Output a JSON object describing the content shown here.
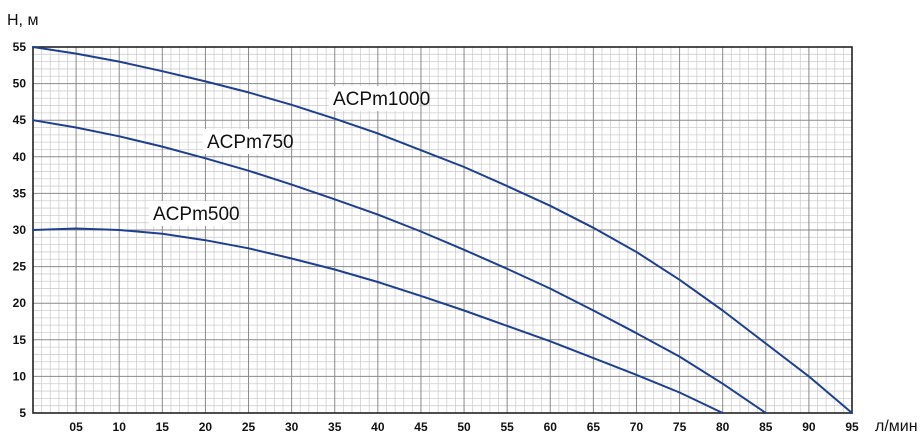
{
  "chart_data": {
    "type": "line",
    "ylabel": "H, м",
    "xlabel": "л/мин",
    "xlim": [
      0,
      95
    ],
    "ylim": [
      5,
      55
    ],
    "x_ticks": [
      "05",
      "10",
      "15",
      "20",
      "25",
      "30",
      "35",
      "40",
      "45",
      "50",
      "55",
      "60",
      "65",
      "70",
      "75",
      "80",
      "85",
      "90",
      "95"
    ],
    "y_ticks": [
      "5",
      "10",
      "15",
      "20",
      "25",
      "30",
      "35",
      "40",
      "45",
      "50",
      "55"
    ],
    "grid": true,
    "line_color": "#1f3f8f",
    "series": [
      {
        "name": "ACPm1000",
        "x": [
          0,
          5,
          10,
          15,
          20,
          25,
          30,
          35,
          40,
          45,
          50,
          55,
          60,
          65,
          70,
          75,
          80,
          85,
          90,
          95
        ],
        "y": [
          55,
          54.1,
          53,
          51.7,
          50.3,
          48.8,
          47.1,
          45.2,
          43.2,
          40.9,
          38.6,
          36,
          33.3,
          30.3,
          27,
          23.2,
          19,
          14.5,
          10,
          5
        ]
      },
      {
        "name": "ACPm750",
        "x": [
          0,
          5,
          10,
          15,
          20,
          25,
          30,
          35,
          40,
          45,
          50,
          55,
          60,
          65,
          70,
          75,
          80,
          85
        ],
        "y": [
          45,
          44,
          42.8,
          41.4,
          39.8,
          38.1,
          36.2,
          34.2,
          32.1,
          29.8,
          27.3,
          24.7,
          22,
          19,
          15.9,
          12.7,
          9,
          5
        ]
      },
      {
        "name": "ACPm500",
        "x": [
          0,
          5,
          10,
          15,
          20,
          25,
          30,
          35,
          40,
          45,
          50,
          55,
          60,
          65,
          70,
          75,
          80
        ],
        "y": [
          30,
          30.2,
          30,
          29.5,
          28.6,
          27.5,
          26.1,
          24.6,
          22.9,
          21,
          19,
          16.9,
          14.8,
          12.5,
          10.2,
          7.8,
          5
        ]
      }
    ]
  }
}
